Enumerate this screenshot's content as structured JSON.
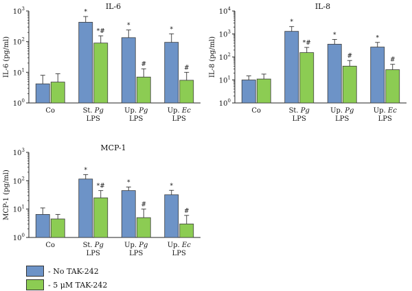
{
  "colors": {
    "no_tak": "#6d93c7",
    "tak": "#8ccc53",
    "axis": "#222222"
  },
  "legend": [
    {
      "label": "- No TAK-242",
      "color": "#6d93c7"
    },
    {
      "label": "- 5 μM TAK-242",
      "color": "#8ccc53"
    }
  ],
  "chart_data": [
    {
      "type": "bar",
      "title": "IL-6",
      "ylabel": "IL-6 (pg/ml)",
      "yscale": "log",
      "ylim": [
        1,
        1000
      ],
      "yticks": [
        "10^0",
        "10^1",
        "10^2",
        "10^3"
      ],
      "categories": [
        [
          "Co"
        ],
        [
          "St. Pg",
          "LPS"
        ],
        [
          "Up. Pg",
          "LPS"
        ],
        [
          "Up. Ec",
          "LPS"
        ]
      ],
      "series": [
        {
          "name": "- No TAK-242",
          "values": [
            4.2,
            430,
            135,
            95
          ],
          "errors": [
            8,
            660,
            240,
            180
          ],
          "markers": [
            "",
            "*",
            "*",
            "*"
          ]
        },
        {
          "name": "- 5 μM TAK-242",
          "values": [
            4.8,
            90,
            7,
            5.5
          ],
          "errors": [
            9,
            155,
            13,
            10
          ],
          "markers": [
            "",
            "*#",
            "#",
            "#"
          ]
        }
      ]
    },
    {
      "type": "bar",
      "title": "IL-8",
      "ylabel": "IL-8 (pg/ml)",
      "yscale": "log",
      "ylim": [
        1,
        10000
      ],
      "yticks": [
        "10^0",
        "10^1",
        "10^2",
        "10^3",
        "10^4"
      ],
      "categories": [
        [
          "Co"
        ],
        [
          "St. Pg",
          "LPS"
        ],
        [
          "Up. Pg",
          "LPS"
        ],
        [
          "Up. Ec",
          "LPS"
        ]
      ],
      "series": [
        {
          "name": "- No TAK-242",
          "values": [
            10,
            1300,
            360,
            270
          ],
          "errors": [
            15,
            2100,
            580,
            430
          ],
          "markers": [
            "",
            "*",
            "*",
            "*"
          ]
        },
        {
          "name": "- 5 μM TAK-242",
          "values": [
            11,
            155,
            40,
            28
          ],
          "errors": [
            18,
            260,
            70,
            48
          ],
          "markers": [
            "",
            "*#",
            "#",
            "#"
          ]
        }
      ]
    },
    {
      "type": "bar",
      "title": "MCP-1",
      "ylabel": "MCP-1 (pg/ml)",
      "yscale": "log",
      "ylim": [
        1,
        1000
      ],
      "yticks": [
        "10^0",
        "10^1",
        "10^2",
        "10^3"
      ],
      "categories": [
        [
          "Co"
        ],
        [
          "St. Pg",
          "LPS"
        ],
        [
          "Up. Pg",
          "LPS"
        ],
        [
          "Up. Ec",
          "LPS"
        ]
      ],
      "series": [
        {
          "name": "- No TAK-242",
          "values": [
            6.5,
            115,
            45,
            32
          ],
          "errors": [
            11,
            165,
            60,
            46
          ],
          "markers": [
            "",
            "*",
            "*",
            "*"
          ]
        },
        {
          "name": "- 5 μM TAK-242",
          "values": [
            4.5,
            25,
            5,
            3
          ],
          "errors": [
            6.5,
            45,
            10,
            6
          ],
          "markers": [
            "",
            "*#",
            "#",
            "#"
          ]
        }
      ]
    }
  ]
}
